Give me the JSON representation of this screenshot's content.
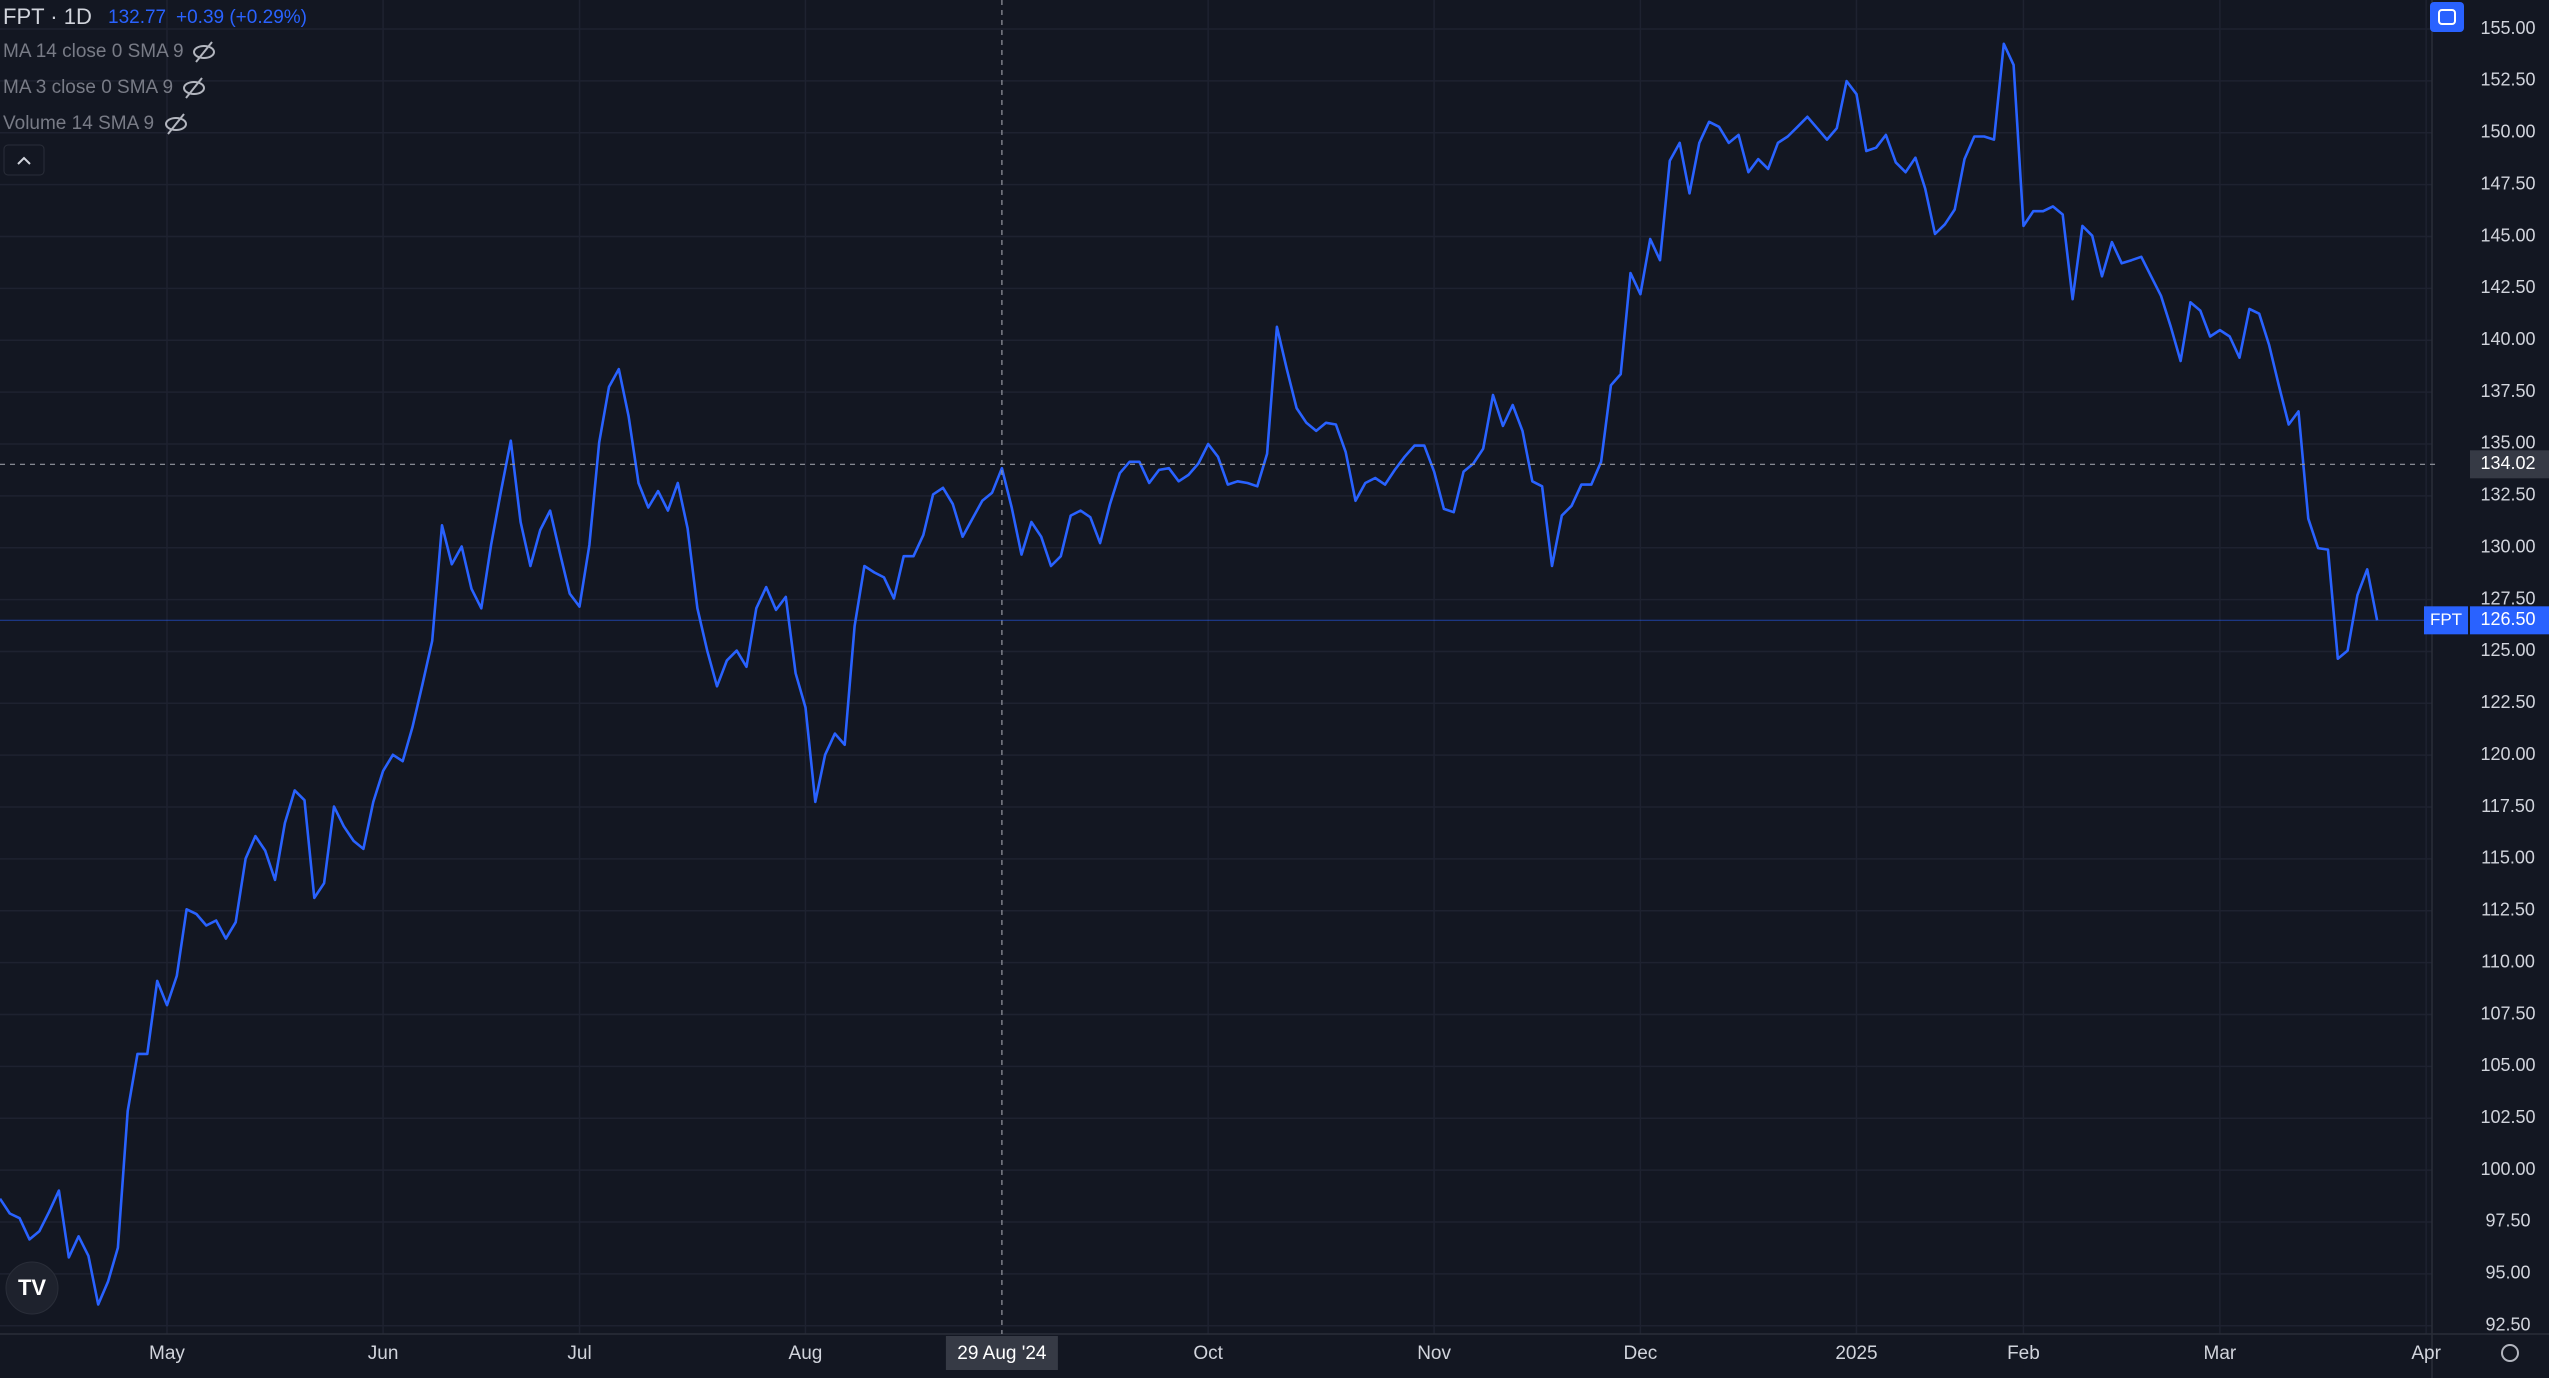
{
  "chart_data": {
    "type": "line",
    "title": "FPT · 1D",
    "price": "132.77",
    "change": "+0.39 (+0.29%)",
    "indicators": [
      "MA 14 close 0 SMA 9",
      "MA 3 close 0 SMA 9",
      "Volume 14 SMA 9"
    ],
    "grid": true,
    "series": [
      {
        "name": "FPT",
        "color": "#2962ff",
        "values": [
          98.62,
          97.91,
          97.68,
          96.66,
          97.05,
          97.99,
          99.01,
          95.79,
          96.81,
          95.87,
          93.52,
          94.62,
          96.26,
          102.85,
          105.6,
          105.6,
          109.12,
          107.95,
          109.36,
          112.57,
          112.34,
          111.79,
          112.03,
          111.16,
          111.95,
          115.01,
          116.1,
          115.4,
          113.99,
          116.73,
          118.3,
          117.83,
          113.12,
          113.83,
          117.52,
          116.57,
          115.87,
          115.48,
          117.75,
          119.24,
          120.02,
          119.71,
          121.36,
          123.4,
          125.51,
          131.08,
          129.2,
          130.06,
          128.02,
          127.08,
          130.14,
          132.73,
          135.16,
          131.24,
          129.12,
          130.85,
          131.79,
          129.75,
          127.79,
          127.16,
          130.14,
          135.08,
          137.75,
          138.61,
          136.34,
          133.12,
          131.94,
          132.73,
          131.79,
          133.12,
          130.93,
          127.08,
          125.04,
          123.32,
          124.57,
          125.04,
          124.26,
          127.08,
          128.1,
          127.0,
          127.63,
          123.95,
          122.3,
          117.75,
          120.02,
          121.04,
          120.5,
          126.22,
          129.12,
          128.81,
          128.57,
          127.55,
          129.59,
          129.59,
          130.61,
          132.57,
          132.89,
          132.1,
          130.53,
          131.4,
          132.26,
          132.65,
          133.83,
          131.94,
          129.67,
          131.24,
          130.53,
          129.12,
          129.59,
          131.55,
          131.79,
          131.47,
          130.22,
          132.1,
          133.59,
          134.14,
          134.14,
          133.12,
          133.75,
          133.83,
          133.2,
          133.51,
          134.06,
          135.0,
          134.38,
          133.04,
          133.2,
          133.12,
          132.96,
          134.53,
          140.65,
          138.61,
          136.73,
          136.02,
          135.63,
          136.02,
          135.94,
          134.61,
          132.26,
          133.12,
          133.36,
          133.04,
          133.75,
          134.38,
          134.92,
          134.92,
          133.67,
          131.87,
          131.71,
          133.67,
          134.06,
          134.77,
          137.36,
          135.87,
          136.88,
          135.63,
          133.2,
          132.96,
          129.12,
          131.55,
          132.02,
          133.04,
          133.04,
          134.14,
          137.83,
          138.37,
          143.24,
          142.22,
          144.88,
          143.86,
          148.65,
          149.51,
          147.08,
          149.51,
          150.53,
          150.29,
          149.51,
          149.9,
          148.1,
          148.73,
          148.26,
          149.51,
          149.82,
          150.29,
          150.77,
          150.22,
          149.67,
          150.22,
          152.49,
          151.86,
          149.12,
          149.28,
          149.9,
          148.57,
          148.1,
          148.8,
          147.31,
          145.12,
          145.59,
          146.3,
          148.73,
          149.82,
          149.82,
          149.67,
          154.29,
          153.27,
          145.51,
          146.22,
          146.22,
          146.45,
          146.06,
          141.98,
          145.51,
          145.04,
          143.08,
          144.73,
          143.71,
          143.86,
          144.02,
          143.08,
          142.14,
          140.65,
          139.0,
          141.83,
          141.43,
          140.18,
          140.49,
          140.18,
          139.16,
          141.51,
          141.28,
          139.79,
          137.83,
          135.94,
          136.57,
          131.4,
          129.98,
          129.91,
          124.65,
          125.04,
          127.71,
          128.96,
          126.5
        ]
      }
    ],
    "last_price": {
      "value": 126.5,
      "label": "126.50"
    },
    "crosshair": {
      "x": {
        "value": 102,
        "label": "29 Aug '24"
      },
      "y": 134.02
    },
    "xlim": [
      0,
      248
    ],
    "xticks": [
      {
        "value": 17,
        "label": "May"
      },
      {
        "value": 39,
        "label": "Jun"
      },
      {
        "value": 59,
        "label": "Jul"
      },
      {
        "value": 82,
        "label": "Aug"
      },
      {
        "value": 123,
        "label": "Oct"
      },
      {
        "value": 146,
        "label": "Nov"
      },
      {
        "value": 167,
        "label": "Dec"
      },
      {
        "value": 189,
        "label": "2025"
      },
      {
        "value": 206,
        "label": "Feb"
      },
      {
        "value": 226,
        "label": "Mar"
      },
      {
        "value": 247,
        "label": "Apr"
      }
    ],
    "ylim": [
      92.1,
      156.4
    ],
    "yticks": [
      {
        "value": 92.5,
        "label": "92.50"
      },
      {
        "value": 95,
        "label": "95.00"
      },
      {
        "value": 97.5,
        "label": "97.50"
      },
      {
        "value": 100,
        "label": "100.00"
      },
      {
        "value": 102.5,
        "label": "102.50"
      },
      {
        "value": 105,
        "label": "105.00"
      },
      {
        "value": 107.5,
        "label": "107.50"
      },
      {
        "value": 110,
        "label": "110.00"
      },
      {
        "value": 112.5,
        "label": "112.50"
      },
      {
        "value": 115,
        "label": "115.00"
      },
      {
        "value": 117.5,
        "label": "117.50"
      },
      {
        "value": 120,
        "label": "120.00"
      },
      {
        "value": 122.5,
        "label": "122.50"
      },
      {
        "value": 125,
        "label": "125.00"
      },
      {
        "value": 127.5,
        "label": "127.50"
      },
      {
        "value": 130,
        "label": "130.00"
      },
      {
        "value": 132.5,
        "label": "132.50"
      },
      {
        "value": 135,
        "label": "135.00"
      },
      {
        "value": 137.5,
        "label": "137.50"
      },
      {
        "value": 140,
        "label": "140.00"
      },
      {
        "value": 142.5,
        "label": "142.50"
      },
      {
        "value": 145,
        "label": "145.00"
      },
      {
        "value": 147.5,
        "label": "147.50"
      },
      {
        "value": 150,
        "label": "150.00"
      },
      {
        "value": 152.5,
        "label": "152.50"
      },
      {
        "value": 155,
        "label": "155.00"
      }
    ]
  }
}
